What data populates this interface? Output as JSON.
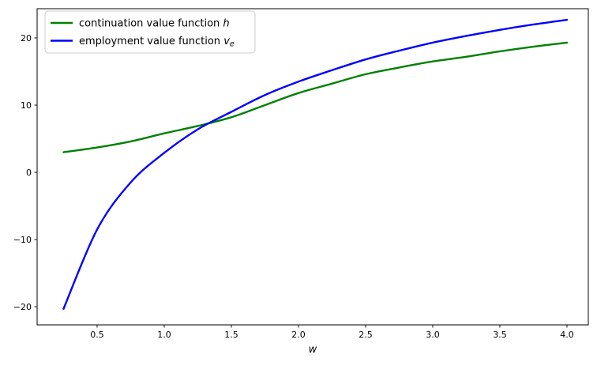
{
  "figure": {
    "background": "#ffffff"
  },
  "chart_data": {
    "type": "line",
    "title": "",
    "xlabel": "w",
    "ylabel": "",
    "x": [
      0.25,
      0.5,
      0.75,
      1.0,
      1.25,
      1.5,
      1.75,
      2.0,
      2.25,
      2.5,
      2.75,
      3.0,
      3.25,
      3.5,
      3.75,
      4.0
    ],
    "series": [
      {
        "name": "continuation value function h",
        "label_prefix": "continuation value function ",
        "label_var": "h",
        "label_sub": "",
        "color": "#008000",
        "values": [
          3.0,
          3.7,
          4.6,
          5.8,
          6.9,
          8.2,
          10.0,
          11.8,
          13.2,
          14.6,
          15.6,
          16.5,
          17.2,
          18.0,
          18.7,
          19.3
        ]
      },
      {
        "name": "employment value function v_e",
        "label_prefix": "employment value function ",
        "label_var": "v",
        "label_sub": "e",
        "color": "#0000ff",
        "values": [
          -20.3,
          -8.5,
          -1.5,
          2.9,
          6.4,
          9.0,
          11.5,
          13.5,
          15.2,
          16.8,
          18.1,
          19.3,
          20.3,
          21.2,
          22.0,
          22.7
        ]
      }
    ],
    "xlim": [
      0.053,
      4.159
    ],
    "ylim": [
      -22.7,
      24.35
    ],
    "xticks": [
      0.5,
      1.0,
      1.5,
      2.0,
      2.5,
      3.0,
      3.5,
      4.0
    ],
    "xtick_labels": [
      "0.5",
      "1.0",
      "1.5",
      "2.0",
      "2.5",
      "3.0",
      "3.5",
      "4.0"
    ],
    "yticks": [
      -20,
      -10,
      0,
      10,
      20
    ],
    "ytick_labels": [
      "−20",
      "−10",
      "0",
      "10",
      "20"
    ],
    "grid": false,
    "legend_position": "upper left",
    "frame_color": "#000000",
    "tick_label_color": "#000000",
    "legend_border_color": "#cccccc",
    "legend_background": "#ffffff"
  }
}
